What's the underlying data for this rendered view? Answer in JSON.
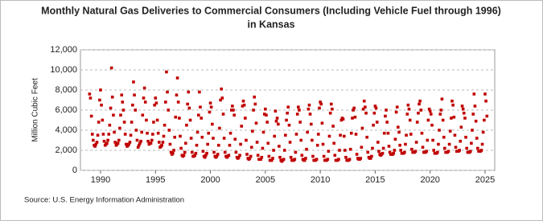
{
  "chart_data": {
    "type": "scatter",
    "title": "Monthly Natural Gas Deliveries to Commercial Consumers (Including Vehicle Fuel through 1996)",
    "subtitle": "in Kansas",
    "y_label": "Million Cubic Feet",
    "source": "Source: U.S. Energy Information Administration",
    "xlim": [
      1988.17,
      2025.88
    ],
    "xticks": [
      1990,
      1995,
      2000,
      2005,
      2010,
      2015,
      2020,
      2025
    ],
    "ylim": [
      0,
      12000
    ],
    "yticks": [
      0,
      {
        "value": 2000,
        "label": "2,000"
      },
      {
        "value": 4000,
        "label": "4,000"
      },
      {
        "value": 6000,
        "label": "6,000"
      },
      {
        "value": 8000,
        "label": "8,000"
      },
      {
        "value": 10000,
        "label": "10,000"
      },
      {
        "value": 12000,
        "label": "12,000"
      }
    ],
    "grid": true,
    "color": "#c00000",
    "x": [
      1989,
      1989.08,
      1989.17,
      1989.25,
      1989.33,
      1989.42,
      1989.5,
      1989.58,
      1989.67,
      1989.75,
      1989.83,
      1989.92,
      1990,
      1990.08,
      1990.17,
      1990.25,
      1990.33,
      1990.42,
      1990.5,
      1990.58,
      1990.67,
      1990.75,
      1990.83,
      1990.92,
      1991,
      1991.08,
      1991.17,
      1991.25,
      1991.33,
      1991.42,
      1991.5,
      1991.58,
      1991.67,
      1991.75,
      1991.83,
      1991.92,
      1992,
      1992.08,
      1992.17,
      1992.25,
      1992.33,
      1992.42,
      1992.5,
      1992.58,
      1992.67,
      1992.75,
      1992.83,
      1992.92,
      1993,
      1993.08,
      1993.17,
      1993.25,
      1993.33,
      1993.42,
      1993.5,
      1993.58,
      1993.67,
      1993.75,
      1993.83,
      1993.92,
      1994,
      1994.08,
      1994.17,
      1994.25,
      1994.33,
      1994.42,
      1994.5,
      1994.58,
      1994.67,
      1994.75,
      1994.83,
      1994.92,
      1995,
      1995.08,
      1995.17,
      1995.25,
      1995.33,
      1995.42,
      1995.5,
      1995.58,
      1995.67,
      1995.75,
      1995.83,
      1995.92,
      1996,
      1996.08,
      1996.17,
      1996.25,
      1996.33,
      1996.42,
      1996.5,
      1996.58,
      1996.67,
      1996.75,
      1996.83,
      1996.92,
      1997,
      1997.08,
      1997.17,
      1997.25,
      1997.33,
      1997.42,
      1997.5,
      1997.58,
      1997.67,
      1997.75,
      1997.83,
      1997.92,
      1998,
      1998.08,
      1998.17,
      1998.25,
      1998.33,
      1998.42,
      1998.5,
      1998.58,
      1998.67,
      1998.75,
      1998.83,
      1998.92,
      1999,
      1999.08,
      1999.17,
      1999.25,
      1999.33,
      1999.42,
      1999.5,
      1999.58,
      1999.67,
      1999.75,
      1999.83,
      1999.92,
      2000,
      2000.08,
      2000.17,
      2000.25,
      2000.33,
      2000.42,
      2000.5,
      2000.58,
      2000.67,
      2000.75,
      2000.83,
      2000.92,
      2001,
      2001.08,
      2001.17,
      2001.25,
      2001.33,
      2001.42,
      2001.5,
      2001.58,
      2001.67,
      2001.75,
      2001.83,
      2001.92,
      2002,
      2002.08,
      2002.17,
      2002.25,
      2002.33,
      2002.42,
      2002.5,
      2002.58,
      2002.67,
      2002.75,
      2002.83,
      2002.92,
      2003,
      2003.08,
      2003.17,
      2003.25,
      2003.33,
      2003.42,
      2003.5,
      2003.58,
      2003.67,
      2003.75,
      2003.83,
      2003.92,
      2004,
      2004.08,
      2004.17,
      2004.25,
      2004.33,
      2004.42,
      2004.5,
      2004.58,
      2004.67,
      2004.75,
      2004.83,
      2004.92,
      2005,
      2005.08,
      2005.17,
      2005.25,
      2005.33,
      2005.42,
      2005.5,
      2005.58,
      2005.67,
      2005.75,
      2005.83,
      2005.92,
      2006,
      2006.08,
      2006.17,
      2006.25,
      2006.33,
      2006.42,
      2006.5,
      2006.58,
      2006.67,
      2006.75,
      2006.83,
      2006.92,
      2007,
      2007.08,
      2007.17,
      2007.25,
      2007.33,
      2007.42,
      2007.5,
      2007.58,
      2007.67,
      2007.75,
      2007.83,
      2007.92,
      2008,
      2008.08,
      2008.17,
      2008.25,
      2008.33,
      2008.42,
      2008.5,
      2008.58,
      2008.67,
      2008.75,
      2008.83,
      2008.92,
      2009,
      2009.08,
      2009.17,
      2009.25,
      2009.33,
      2009.42,
      2009.5,
      2009.58,
      2009.67,
      2009.75,
      2009.83,
      2009.92,
      2010,
      2010.08,
      2010.17,
      2010.25,
      2010.33,
      2010.42,
      2010.5,
      2010.58,
      2010.67,
      2010.75,
      2010.83,
      2010.92,
      2011,
      2011.08,
      2011.17,
      2011.25,
      2011.33,
      2011.42,
      2011.5,
      2011.58,
      2011.67,
      2011.75,
      2011.83,
      2011.92,
      2012,
      2012.08,
      2012.17,
      2012.25,
      2012.33,
      2012.42,
      2012.5,
      2012.58,
      2012.67,
      2012.75,
      2012.83,
      2012.92,
      2013,
      2013.08,
      2013.17,
      2013.25,
      2013.33,
      2013.42,
      2013.5,
      2013.58,
      2013.67,
      2013.75,
      2013.83,
      2013.92,
      2014,
      2014.08,
      2014.17,
      2014.25,
      2014.33,
      2014.42,
      2014.5,
      2014.58,
      2014.67,
      2014.75,
      2014.83,
      2014.92,
      2015,
      2015.08,
      2015.17,
      2015.25,
      2015.33,
      2015.42,
      2015.5,
      2015.58,
      2015.67,
      2015.75,
      2015.83,
      2015.92,
      2016,
      2016.08,
      2016.17,
      2016.25,
      2016.33,
      2016.42,
      2016.5,
      2016.58,
      2016.67,
      2016.75,
      2016.83,
      2016.92,
      2017,
      2017.08,
      2017.17,
      2017.25,
      2017.33,
      2017.42,
      2017.5,
      2017.58,
      2017.67,
      2017.75,
      2017.83,
      2017.92,
      2018,
      2018.08,
      2018.17,
      2018.25,
      2018.33,
      2018.42,
      2018.5,
      2018.58,
      2018.67,
      2018.75,
      2018.83,
      2018.92,
      2019,
      2019.08,
      2019.17,
      2019.25,
      2019.33,
      2019.42,
      2019.5,
      2019.58,
      2019.67,
      2019.75,
      2019.83,
      2019.92,
      2020,
      2020.08,
      2020.17,
      2020.25,
      2020.33,
      2020.42,
      2020.5,
      2020.58,
      2020.67,
      2020.75,
      2020.83,
      2020.92,
      2021,
      2021.08,
      2021.17,
      2021.25,
      2021.33,
      2021.42,
      2021.5,
      2021.58,
      2021.67,
      2021.75,
      2021.83,
      2021.92,
      2022,
      2022.08,
      2022.17,
      2022.25,
      2022.33,
      2022.42,
      2022.5,
      2022.58,
      2022.67,
      2022.75,
      2022.83,
      2022.92,
      2023,
      2023.08,
      2023.17,
      2023.25,
      2023.33,
      2023.42,
      2023.5,
      2023.58,
      2023.67,
      2023.75,
      2023.83,
      2023.92,
      2024,
      2024.08,
      2024.17,
      2024.25,
      2024.33,
      2024.42,
      2024.5,
      2024.58,
      2024.67,
      2024.75,
      2024.83,
      2024.92,
      2025,
      2025.08,
      2025.17
    ],
    "values": [
      7600,
      7200,
      5400,
      3600,
      3000,
      2500,
      2400,
      2600,
      2800,
      3500,
      4800,
      7000,
      8000,
      6500,
      5000,
      3600,
      2900,
      2500,
      2600,
      2700,
      3000,
      3600,
      4500,
      6200,
      10200,
      7300,
      5500,
      3800,
      2800,
      2500,
      2600,
      2700,
      3000,
      4200,
      5500,
      7500,
      6800,
      6000,
      4800,
      3600,
      2600,
      2400,
      2500,
      2600,
      2800,
      3500,
      4800,
      6500,
      8800,
      7500,
      6000,
      4000,
      3000,
      2300,
      2500,
      2700,
      2900,
      3800,
      5500,
      7200,
      8200,
      6800,
      5000,
      3700,
      2900,
      2600,
      2700,
      2700,
      3000,
      3600,
      4800,
      6500,
      7200,
      6700,
      5000,
      3700,
      2800,
      2300,
      2400,
      2500,
      2800,
      3400,
      4500,
      6800,
      9800,
      7800,
      6000,
      4000,
      2600,
      1800,
      1600,
      1700,
      2000,
      3300,
      5300,
      7500,
      9200,
      6800,
      5200,
      3400,
      2200,
      1500,
      1400,
      1500,
      1800,
      2700,
      4500,
      6600,
      7800,
      6200,
      5000,
      3200,
      1800,
      1400,
      1400,
      1500,
      1700,
      2500,
      3800,
      5500,
      7800,
      6300,
      5200,
      3300,
      1900,
      1400,
      1300,
      1500,
      1700,
      2600,
      3700,
      5800,
      6700,
      6300,
      4600,
      3200,
      1800,
      1400,
      1300,
      1400,
      1600,
      2500,
      4200,
      7000,
      8100,
      7200,
      5600,
      3200,
      1800,
      1400,
      1300,
      1400,
      1500,
      2500,
      3700,
      6000,
      6400,
      6000,
      5500,
      3100,
      1800,
      1300,
      1200,
      1300,
      1500,
      2600,
      4400,
      6400,
      6900,
      6500,
      5200,
      3000,
      1600,
      1200,
      1100,
      1200,
      1400,
      2300,
      3900,
      6000,
      7300,
      6600,
      4700,
      2800,
      1500,
      1100,
      1100,
      1100,
      1300,
      2200,
      3800,
      5600,
      6100,
      5500,
      4800,
      2700,
      1400,
      1000,
      1000,
      1000,
      1200,
      2000,
      3400,
      5900,
      4900,
      5200,
      4600,
      2400,
      1300,
      1000,
      900,
      1000,
      1100,
      2000,
      3500,
      5000,
      5700,
      6300,
      4500,
      2800,
      1300,
      1000,
      1000,
      1000,
      1100,
      1800,
      3600,
      5600,
      6300,
      6000,
      4800,
      3000,
      1500,
      1100,
      1000,
      1000,
      1200,
      2100,
      3800,
      6100,
      6500,
      5600,
      4600,
      3000,
      1400,
      1000,
      1000,
      1000,
      1100,
      2500,
      3600,
      6200,
      6800,
      6600,
      4700,
      2600,
      1400,
      1000,
      1000,
      1000,
      1100,
      1900,
      3400,
      5700,
      6600,
      6100,
      4400,
      2700,
      1500,
      1000,
      1000,
      1000,
      1100,
      2000,
      3500,
      5000,
      5200,
      5100,
      3400,
      2000,
      1300,
      1000,
      1000,
      1000,
      1100,
      2100,
      3700,
      5200,
      6000,
      6200,
      5300,
      3600,
      1600,
      1200,
      1100,
      1100,
      1200,
      2300,
      4200,
      6100,
      6900,
      6300,
      5700,
      3300,
      1800,
      1300,
      1200,
      1200,
      1400,
      2200,
      4500,
      5700,
      6400,
      6200,
      4800,
      2800,
      1900,
      1600,
      1500,
      1600,
      1700,
      2200,
      3700,
      5400,
      6000,
      4800,
      3700,
      2400,
      1800,
      1600,
      1600,
      1600,
      1700,
      2000,
      3100,
      5800,
      6300,
      4300,
      3800,
      2500,
      2000,
      1700,
      1700,
      1700,
      1800,
      2600,
      3500,
      5600,
      6500,
      6100,
      5000,
      3600,
      2100,
      1800,
      1800,
      1800,
      1900,
      2800,
      4800,
      5700,
      6600,
      6900,
      6000,
      3700,
      2300,
      1800,
      1800,
      1800,
      1900,
      3000,
      5000,
      6100,
      5900,
      5600,
      4500,
      3000,
      2000,
      1700,
      1700,
      1700,
      1800,
      2600,
      4000,
      5600,
      6000,
      7100,
      5000,
      3300,
      2200,
      1800,
      1800,
      1800,
      1900,
      2600,
      3900,
      5200,
      6900,
      6500,
      5300,
      3500,
      2300,
      1900,
      1900,
      1900,
      2000,
      2900,
      4300,
      6400,
      6100,
      5700,
      5200,
      3300,
      2200,
      1800,
      1800,
      1800,
      1900,
      2700,
      4000,
      5600,
      7600,
      6400,
      4900,
      3200,
      2200,
      1900,
      1900,
      1900,
      2000,
      2600,
      3800,
      5000,
      7600,
      6900,
      5400
    ]
  }
}
